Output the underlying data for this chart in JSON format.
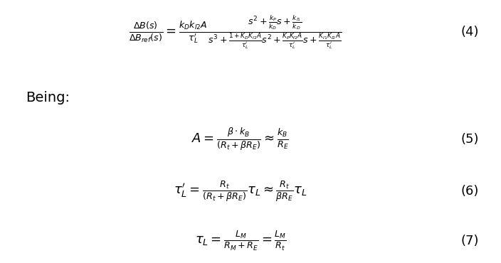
{
  "background_color": "#ffffff",
  "eq4": "\\frac{\\Delta B(s)}{\\Delta B_{ref}(s)} = \\frac{k_D k_{I2} A}{\\tau^{\\prime}_L} \\frac{s^2 + \\frac{k_P}{k_D}s + \\frac{k_{I1}}{k_D}}{s^3 + \\frac{1+K_D K_{I2} A}{\\tau^{\\prime}_L}s^2 + \\frac{K_P K_{I2} A}{\\tau^{\\prime}_L}s + \\frac{K_{I1} K_{I2} A}{\\tau^{\\prime}_L}}",
  "eq4_label": "(4)",
  "eq5": "A = \\frac{\\beta \\cdot k_B}{(R_t + \\beta R_E)} \\approx \\frac{k_B}{R_E}",
  "eq5_label": "(5)",
  "eq6": "\\tau^{\\prime}_L = \\frac{R_t}{(R_t + \\beta R_E)} \\tau_L \\approx \\frac{R_t}{\\beta R_E} \\tau_L",
  "eq6_label": "(6)",
  "eq7": "\\tau_L = \\frac{L_M}{R_M + R_E} = \\frac{L_M}{R_t}",
  "eq7_label": "(7)",
  "being_text": "Being:",
  "text_color": "#000000",
  "fontsize_eq": 13,
  "fontsize_being": 14,
  "fontsize_label": 13
}
